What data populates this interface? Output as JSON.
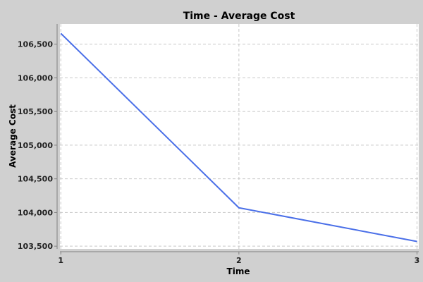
{
  "chart_data": {
    "type": "line",
    "title": "Time - Average Cost",
    "xlabel": "Time",
    "ylabel": "Average Cost",
    "x": [
      1,
      2,
      3
    ],
    "x_tick_labels": [
      "1",
      "2",
      "3"
    ],
    "xlim": [
      0.995,
      3.01
    ],
    "series": [
      {
        "values": [
          106660,
          104070,
          103570
        ],
        "color": "#4a6fe8"
      }
    ],
    "ylim": [
      103460,
      106800
    ],
    "y_ticks": [
      103500,
      104000,
      104500,
      105000,
      105500,
      106000,
      106500
    ],
    "y_tick_labels": [
      "103,500",
      "104,000",
      "104,500",
      "105,000",
      "105,500",
      "106,000",
      "106,500"
    ],
    "grid": true,
    "plot_background": "#ffffff",
    "page_background": "#d0d0d0"
  }
}
